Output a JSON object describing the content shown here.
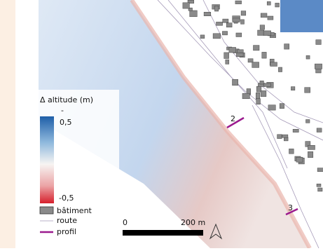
{
  "legend": {
    "title": "Δ altitude (m)",
    "colorbar": {
      "top_mark": "-",
      "max_label": "0,5",
      "min_label": "-0,5"
    },
    "items": [
      {
        "label": "bâtiment"
      },
      {
        "label": "route"
      },
      {
        "label": "profil"
      }
    ]
  },
  "scale_bar": {
    "start": "0",
    "end": "200 m"
  },
  "profiles": [
    {
      "label": "2"
    },
    {
      "label": "3"
    }
  ]
}
